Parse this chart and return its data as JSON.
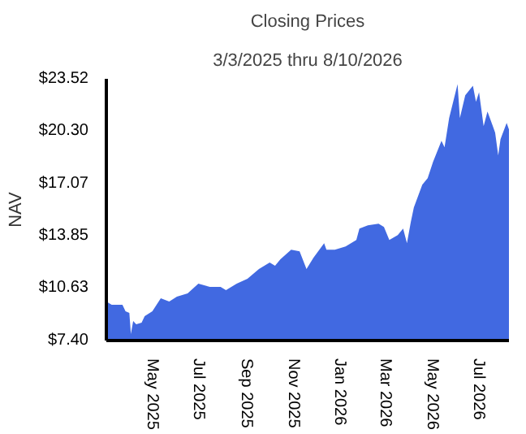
{
  "chart_data": {
    "type": "area",
    "title": "Closing Prices",
    "subtitle": "3/3/2025 thru 8/10/2026",
    "ylabel": "NAV",
    "x": [
      "2025-03-03",
      "2025-03-10",
      "2025-03-24",
      "2025-03-28",
      "2025-04-02",
      "2025-04-04",
      "2025-04-07",
      "2025-04-11",
      "2025-04-18",
      "2025-04-22",
      "2025-05-02",
      "2025-05-13",
      "2025-05-24",
      "2025-06-03",
      "2025-06-17",
      "2025-07-01",
      "2025-07-16",
      "2025-07-30",
      "2025-08-06",
      "2025-08-20",
      "2025-09-03",
      "2025-09-18",
      "2025-10-02",
      "2025-10-09",
      "2025-10-16",
      "2025-10-30",
      "2025-11-10",
      "2025-11-19",
      "2025-11-28",
      "2025-12-12",
      "2025-12-15",
      "2025-12-26",
      "2026-01-09",
      "2026-01-23",
      "2026-01-27",
      "2026-02-07",
      "2026-02-21",
      "2026-02-28",
      "2026-03-07",
      "2026-03-18",
      "2026-03-25",
      "2026-03-30",
      "2026-04-04",
      "2026-04-08",
      "2026-04-19",
      "2026-04-26",
      "2026-05-03",
      "2026-05-14",
      "2026-05-18",
      "2026-05-24",
      "2026-06-04",
      "2026-06-07",
      "2026-06-14",
      "2026-06-24",
      "2026-06-28",
      "2026-07-02",
      "2026-07-08",
      "2026-07-13",
      "2026-07-20",
      "2026-07-23",
      "2026-07-27",
      "2026-07-30",
      "2026-08-07",
      "2026-08-10"
    ],
    "series": [
      {
        "color": "#4169e1",
        "values": [
          9.8,
          9.6,
          9.6,
          9.2,
          9.1,
          7.8,
          8.6,
          8.4,
          8.5,
          8.9,
          9.2,
          10.0,
          9.8,
          10.1,
          10.3,
          10.9,
          10.7,
          10.7,
          10.5,
          10.9,
          11.2,
          11.8,
          12.2,
          12.0,
          12.4,
          13.0,
          12.9,
          11.8,
          12.5,
          13.4,
          13.0,
          13.0,
          13.2,
          13.6,
          14.3,
          14.5,
          14.6,
          14.4,
          13.6,
          13.9,
          14.3,
          13.4,
          14.7,
          15.6,
          17.0,
          17.4,
          18.4,
          19.7,
          19.3,
          21.1,
          23.2,
          21.1,
          22.5,
          23.1,
          22.1,
          22.7,
          20.6,
          21.5,
          20.6,
          20.2,
          18.8,
          19.8,
          20.8,
          20.4
        ]
      }
    ],
    "xlim": [
      "2025-03-03",
      "2026-08-10"
    ],
    "xticks": [
      {
        "value": "2025-05-01",
        "label": "May 2025"
      },
      {
        "value": "2025-07-01",
        "label": "Jul 2025"
      },
      {
        "value": "2025-09-01",
        "label": "Sep 2025"
      },
      {
        "value": "2025-11-01",
        "label": "Nov 2025"
      },
      {
        "value": "2026-01-01",
        "label": "Jan 2026"
      },
      {
        "value": "2026-03-01",
        "label": "Mar 2026"
      },
      {
        "value": "2026-05-01",
        "label": "May 2026"
      },
      {
        "value": "2026-07-01",
        "label": "Jul 2026"
      }
    ],
    "ylim": [
      7.4,
      23.52
    ],
    "yticks": [
      {
        "value": 7.4,
        "label": "$7.40"
      },
      {
        "value": 10.63,
        "label": "$10.63"
      },
      {
        "value": 13.85,
        "label": "$13.85"
      },
      {
        "value": 17.07,
        "label": "$17.07"
      },
      {
        "value": 20.3,
        "label": "$20.30"
      },
      {
        "value": 23.52,
        "label": "$23.52"
      }
    ]
  }
}
